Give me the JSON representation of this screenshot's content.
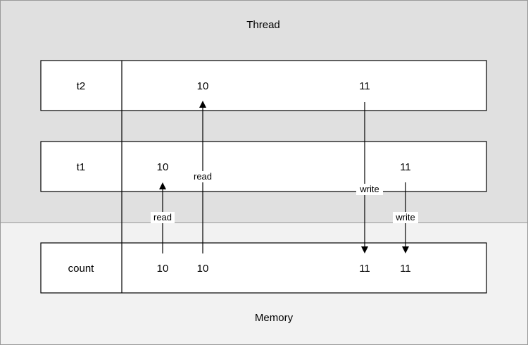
{
  "regions": {
    "thread_label": "Thread",
    "memory_label": "Memory"
  },
  "rows": [
    {
      "id": "t2",
      "label": "t2",
      "values": [
        "10",
        "11"
      ]
    },
    {
      "id": "t1",
      "label": "t1",
      "values": [
        "10",
        "11"
      ]
    },
    {
      "id": "count",
      "label": "count",
      "values": [
        "10",
        "10",
        "11",
        "11"
      ]
    }
  ],
  "edges": [
    {
      "from": "count",
      "to": "t1",
      "label": "read"
    },
    {
      "from": "count",
      "to": "t2",
      "label": "read"
    },
    {
      "from": "t2",
      "to": "count",
      "label": "write"
    },
    {
      "from": "t1",
      "to": "count",
      "label": "write"
    }
  ],
  "colors": {
    "thread_region": "#e0e0e0",
    "memory_region": "#f2f2f2",
    "row_fill": "#ffffff",
    "stroke": "#000000"
  }
}
